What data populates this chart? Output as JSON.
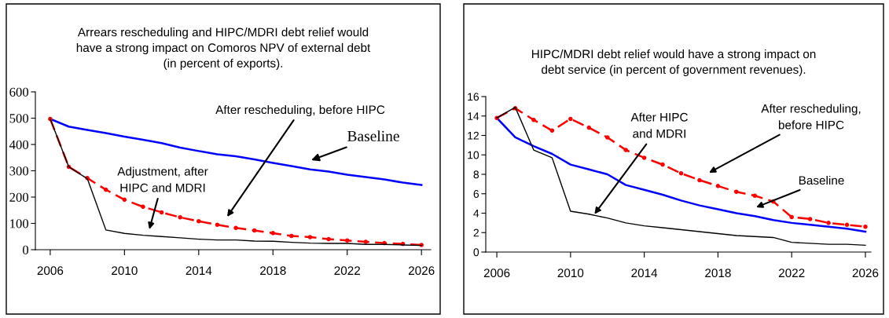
{
  "chart_data": [
    {
      "type": "line",
      "title": "Arrears rescheduling and HIPC/MDRI debt relief would\nhave a strong impact on Comoros NPV of external debt\n(in percent of exports).",
      "x": [
        2006,
        2007,
        2008,
        2009,
        2010,
        2011,
        2012,
        2013,
        2014,
        2015,
        2016,
        2017,
        2018,
        2019,
        2020,
        2021,
        2022,
        2023,
        2024,
        2025,
        2026
      ],
      "series": [
        {
          "color": "#0000ff",
          "line_style": "solid",
          "marker": "none",
          "values": [
            497,
            468,
            455,
            443,
            430,
            418,
            405,
            388,
            375,
            363,
            355,
            343,
            330,
            318,
            305,
            297,
            285,
            276,
            267,
            255,
            246
          ]
        },
        {
          "color": "#ff0000",
          "line_style": "dashed",
          "marker": "circle",
          "values": [
            497,
            315,
            272,
            228,
            190,
            163,
            142,
            123,
            108,
            95,
            83,
            73,
            63,
            52,
            48,
            40,
            35,
            30,
            25,
            22,
            18
          ]
        },
        {
          "color": "#000000",
          "line_style": "solid",
          "marker": "none",
          "values": [
            497,
            315,
            270,
            75,
            62,
            55,
            50,
            45,
            40,
            37,
            37,
            33,
            32,
            28,
            25,
            24,
            24,
            20,
            20,
            18,
            16
          ]
        }
      ],
      "xlim": [
        2005.2,
        2026.5
      ],
      "xticks": [
        2006,
        2010,
        2014,
        2018,
        2022,
        2026
      ],
      "ylim": [
        0,
        600
      ],
      "yticks": [
        0,
        100,
        200,
        300,
        400,
        500,
        600
      ],
      "grid": false,
      "legend": false,
      "annotations": [
        "After rescheduling, before HIPC",
        "Baseline",
        "Adjustment, after\nHIPC and MDRI"
      ]
    },
    {
      "type": "line",
      "title": "HIPC/MDRI debt relief would have a strong impact on\ndebt service (in percent of government revenues).",
      "x": [
        2006,
        2007,
        2008,
        2009,
        2010,
        2011,
        2012,
        2013,
        2014,
        2015,
        2016,
        2017,
        2018,
        2019,
        2020,
        2021,
        2022,
        2023,
        2024,
        2025,
        2026
      ],
      "series": [
        {
          "color": "#0000ff",
          "line_style": "solid",
          "marker": "none",
          "values": [
            13.8,
            11.8,
            10.9,
            10.1,
            9.0,
            8.5,
            8.0,
            6.9,
            6.4,
            5.9,
            5.3,
            4.8,
            4.4,
            4.0,
            3.7,
            3.3,
            3.0,
            2.8,
            2.6,
            2.4,
            2.1
          ]
        },
        {
          "color": "#ff0000",
          "line_style": "dashed",
          "marker": "circle",
          "values": [
            13.8,
            14.8,
            13.6,
            12.5,
            13.7,
            12.8,
            11.8,
            10.5,
            9.7,
            9.0,
            8.1,
            7.4,
            6.8,
            6.2,
            5.8,
            5.2,
            3.6,
            3.4,
            3.0,
            2.8,
            2.6
          ]
        },
        {
          "color": "#000000",
          "line_style": "solid",
          "marker": "none",
          "values": [
            13.8,
            14.9,
            10.5,
            9.7,
            4.2,
            3.9,
            3.5,
            3.0,
            2.7,
            2.5,
            2.3,
            2.1,
            1.9,
            1.7,
            1.6,
            1.5,
            1.0,
            0.9,
            0.8,
            0.8,
            0.7
          ]
        }
      ],
      "xlim": [
        2005.4,
        2026.3
      ],
      "xticks": [
        2006,
        2010,
        2014,
        2018,
        2022,
        2026
      ],
      "ylim": [
        0,
        16
      ],
      "yticks": [
        0,
        2,
        4,
        6,
        8,
        10,
        12,
        14,
        16
      ],
      "grid": false,
      "legend": false,
      "annotations": [
        {
          "text": "After HIPC\nand MDRI",
          "x": 2011.3,
          "y": 3.9
        },
        "After rescheduling,\nbefore HIPC",
        "Baseline"
      ]
    }
  ]
}
